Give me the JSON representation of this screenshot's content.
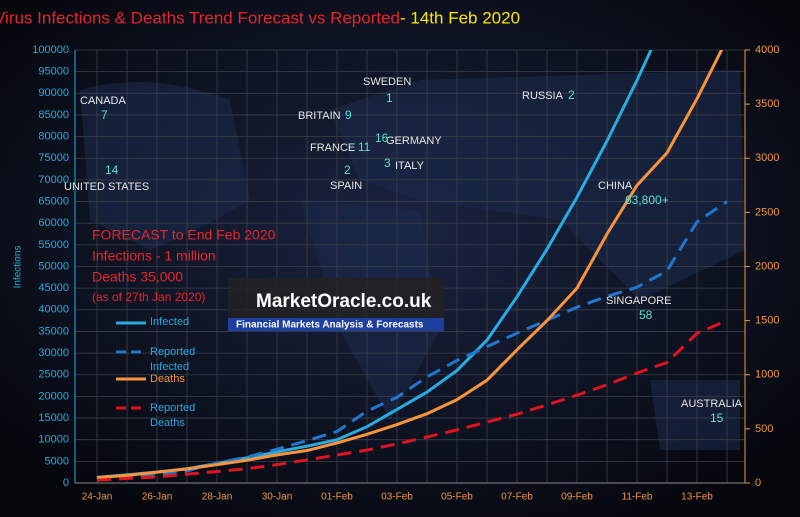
{
  "chart_data": {
    "type": "line",
    "title": "CoronaVirus Infections & Deaths Trend Forecast vs Reported",
    "title_date": " - 14th Feb  2020",
    "y_label": "Infections",
    "categories": [
      "24-Jan",
      null,
      "26-Jan",
      null,
      "28-Jan",
      null,
      "30-Jan",
      null,
      "01-Feb",
      null,
      "03-Feb",
      null,
      "05-Feb",
      null,
      "07-Feb",
      null,
      "09-Feb",
      null,
      "11-Feb",
      null,
      "13-Feb",
      null
    ],
    "ylim": [
      0,
      100000
    ],
    "yticks": [
      0,
      5000,
      10000,
      15000,
      20000,
      25000,
      30000,
      35000,
      40000,
      45000,
      50000,
      55000,
      60000,
      65000,
      70000,
      75000,
      80000,
      85000,
      90000,
      95000,
      100000
    ],
    "y2lim": [
      0,
      4000
    ],
    "y2ticks": [
      0,
      500,
      1000,
      1500,
      2000,
      2500,
      3000,
      3500,
      4000
    ],
    "grid": true,
    "series": [
      {
        "name": "Infected",
        "color": "#29abe2",
        "dash": false,
        "values": [
          1300,
          1900,
          2500,
          3300,
          4500,
          5800,
          7200,
          8500,
          10000,
          13000,
          17000,
          21000,
          26000,
          33000,
          43000,
          54000,
          66000,
          79000,
          93000,
          108000,
          null,
          null
        ]
      },
      {
        "name": "Reported Infected",
        "color": "#1f77d0",
        "dash": true,
        "values": [
          900,
          1300,
          2000,
          2800,
          4600,
          6000,
          7800,
          9800,
          11900,
          16600,
          19800,
          24500,
          28300,
          31500,
          34600,
          37600,
          40600,
          43100,
          45200,
          49000,
          60300,
          65000
        ]
      },
      {
        "name": "Deaths",
        "color": "#f7943c",
        "dash": false,
        "axis": "y2",
        "values": [
          50,
          70,
          100,
          130,
          170,
          210,
          260,
          300,
          370,
          450,
          540,
          640,
          770,
          950,
          1230,
          1500,
          1800,
          2300,
          2750,
          3050,
          3550,
          4100
        ]
      },
      {
        "name": "Reported Deaths",
        "color": "#e0141e",
        "dash": true,
        "axis": "y2",
        "values": [
          26,
          42,
          56,
          82,
          106,
          132,
          170,
          213,
          259,
          304,
          361,
          425,
          490,
          563,
          636,
          722,
          811,
          908,
          1016,
          1113,
          1383,
          1500
        ]
      }
    ],
    "forecast_box": [
      "FORECAST to End Feb 2020",
      "Infections - 1 million",
      "Deaths 35,000",
      "(as of 27th Jan 2020)"
    ],
    "logo": {
      "name": "MarketOracle.co.uk",
      "tagline": "Financial Markets Analysis & Forecasts"
    },
    "countries": [
      {
        "name": "CANADA",
        "count": "7"
      },
      {
        "name": "UNITED STATES",
        "count": "14"
      },
      {
        "name": "BRITAIN",
        "count": "9"
      },
      {
        "name": "FRANCE",
        "count": "11"
      },
      {
        "name": "SPAIN",
        "count": "2"
      },
      {
        "name": "SWEDEN",
        "count": "1"
      },
      {
        "name": "GERMANY",
        "count": "16"
      },
      {
        "name": "ITALY",
        "count": "3"
      },
      {
        "name": "RUSSIA",
        "count": "2"
      },
      {
        "name": "CHINA",
        "count": "63,800+"
      },
      {
        "name": "SINGAPORE",
        "count": "58"
      },
      {
        "name": "AUSTRALIA",
        "count": "15"
      }
    ]
  }
}
